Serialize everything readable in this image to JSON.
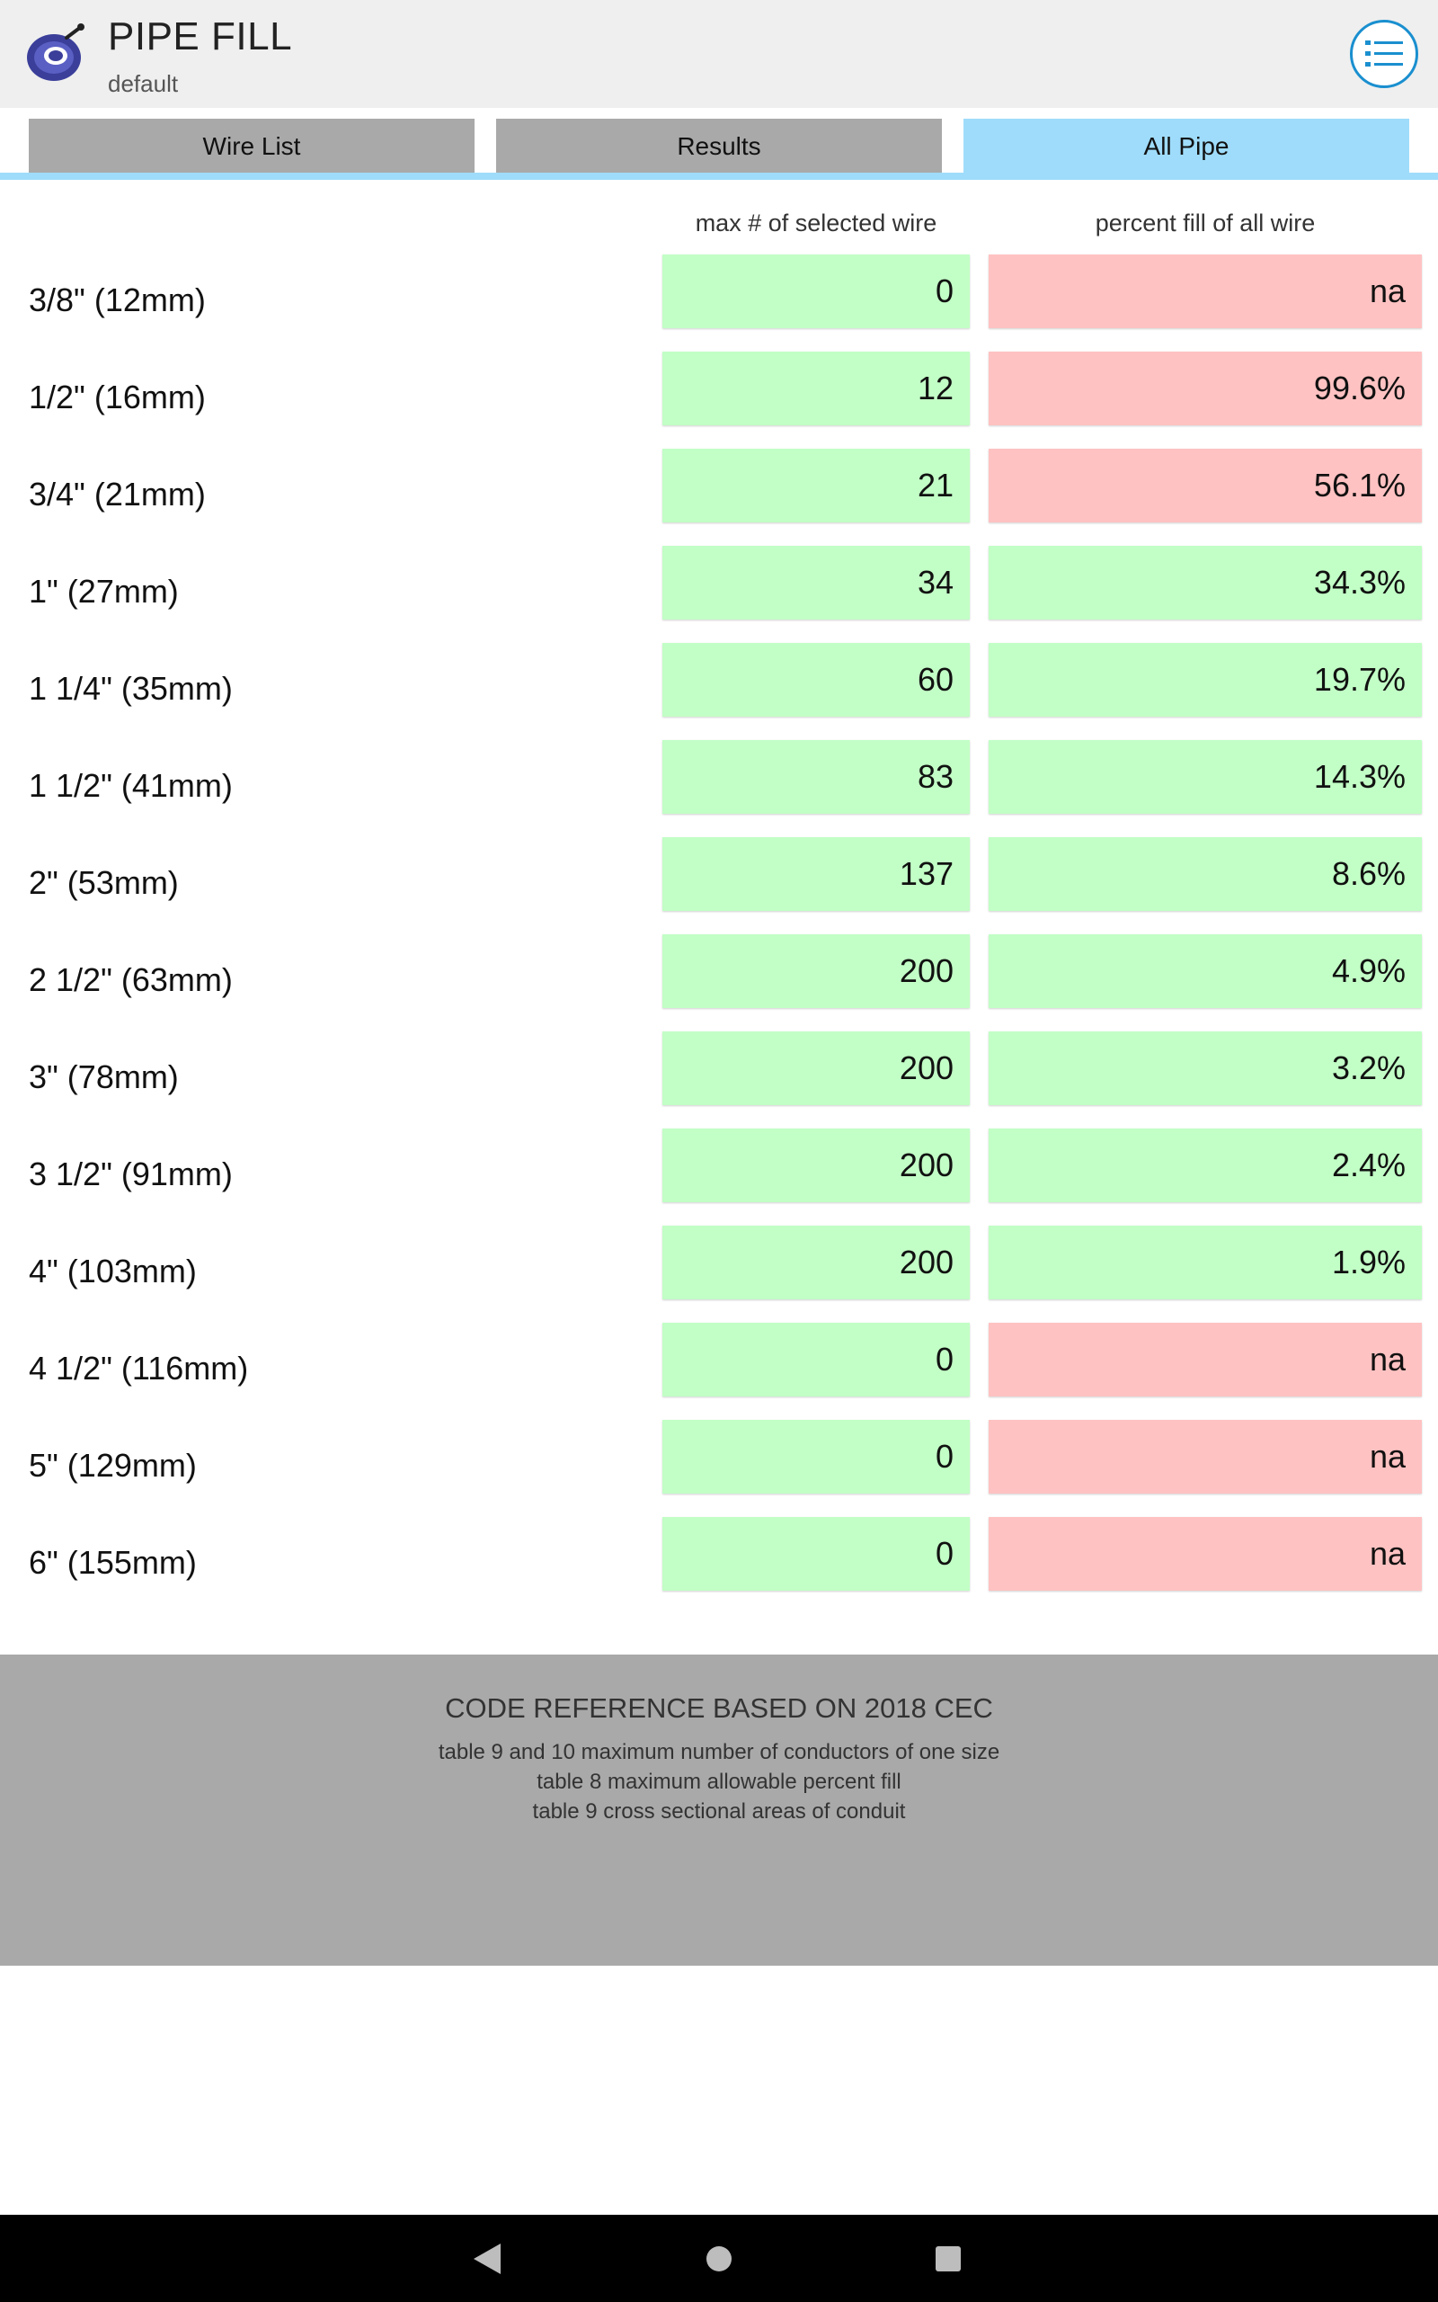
{
  "header": {
    "title": "PIPE FILL",
    "subtitle": "default",
    "logo_icon": "wire-reel-icon",
    "menu_icon": "list-menu-icon"
  },
  "tabs": [
    {
      "label": "Wire List",
      "active": false
    },
    {
      "label": "Results",
      "active": false
    },
    {
      "label": "All Pipe",
      "active": true
    }
  ],
  "table": {
    "columns": {
      "max": "max # of selected wire",
      "fill": "percent fill of all wire"
    },
    "rows": [
      {
        "size": "3/8\" (12mm)",
        "max": "0",
        "fill": "na",
        "fill_status": "red"
      },
      {
        "size": "1/2\" (16mm)",
        "max": "12",
        "fill": "99.6%",
        "fill_status": "red"
      },
      {
        "size": "3/4\" (21mm)",
        "max": "21",
        "fill": "56.1%",
        "fill_status": "red"
      },
      {
        "size": "1\" (27mm)",
        "max": "34",
        "fill": "34.3%",
        "fill_status": "green"
      },
      {
        "size": "1 1/4\" (35mm)",
        "max": "60",
        "fill": "19.7%",
        "fill_status": "green"
      },
      {
        "size": "1 1/2\" (41mm)",
        "max": "83",
        "fill": "14.3%",
        "fill_status": "green"
      },
      {
        "size": "2\" (53mm)",
        "max": "137",
        "fill": "8.6%",
        "fill_status": "green"
      },
      {
        "size": "2 1/2\" (63mm)",
        "max": "200",
        "fill": "4.9%",
        "fill_status": "green"
      },
      {
        "size": "3\" (78mm)",
        "max": "200",
        "fill": "3.2%",
        "fill_status": "green"
      },
      {
        "size": "3 1/2\" (91mm)",
        "max": "200",
        "fill": "2.4%",
        "fill_status": "green"
      },
      {
        "size": "4\" (103mm)",
        "max": "200",
        "fill": "1.9%",
        "fill_status": "green"
      },
      {
        "size": "4 1/2\" (116mm)",
        "max": "0",
        "fill": "na",
        "fill_status": "red"
      },
      {
        "size": "5\" (129mm)",
        "max": "0",
        "fill": "na",
        "fill_status": "red"
      },
      {
        "size": "6\" (155mm)",
        "max": "0",
        "fill": "na",
        "fill_status": "red"
      }
    ]
  },
  "reference": {
    "title": "CODE REFERENCE BASED ON 2018 CEC",
    "lines": [
      "table 9 and 10 maximum number of conductors of one size",
      "table 8 maximum allowable percent fill",
      "table 9 cross sectional areas of conduit"
    ]
  },
  "nav": {
    "back_icon": "back-triangle-icon",
    "home_icon": "home-circle-icon",
    "recents_icon": "recents-square-icon"
  },
  "colors": {
    "ok": "#c2ffc6",
    "over": "#ffc2c2",
    "active_tab": "#9fdcfb",
    "inactive_tab": "#a9a9a9",
    "accent": "#1a8fcf"
  }
}
